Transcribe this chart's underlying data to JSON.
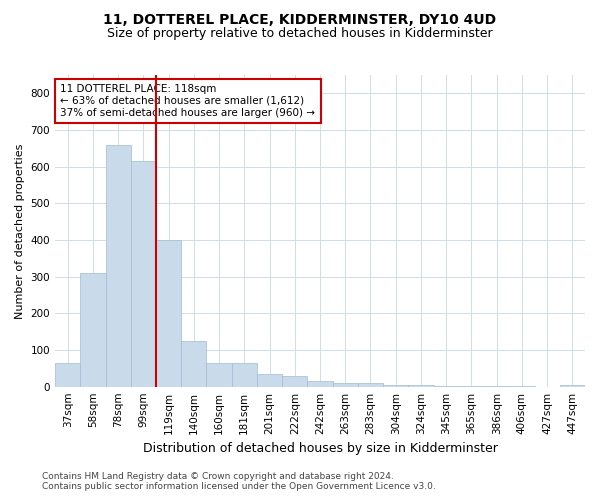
{
  "title": "11, DOTTEREL PLACE, KIDDERMINSTER, DY10 4UD",
  "subtitle": "Size of property relative to detached houses in Kidderminster",
  "xlabel": "Distribution of detached houses by size in Kidderminster",
  "ylabel": "Number of detached properties",
  "categories": [
    "37sqm",
    "58sqm",
    "78sqm",
    "99sqm",
    "119sqm",
    "140sqm",
    "160sqm",
    "181sqm",
    "201sqm",
    "222sqm",
    "242sqm",
    "263sqm",
    "283sqm",
    "304sqm",
    "324sqm",
    "345sqm",
    "365sqm",
    "386sqm",
    "406sqm",
    "427sqm",
    "447sqm"
  ],
  "values": [
    65,
    310,
    660,
    615,
    400,
    125,
    65,
    65,
    35,
    30,
    15,
    10,
    10,
    5,
    5,
    3,
    3,
    2,
    2,
    0,
    5
  ],
  "bar_color": "#c9daea",
  "bar_edge_color": "#a0bcd4",
  "vline_index": 3.5,
  "vline_color": "#cc0000",
  "annotation_text": "11 DOTTEREL PLACE: 118sqm\n← 63% of detached houses are smaller (1,612)\n37% of semi-detached houses are larger (960) →",
  "annotation_box_color": "#ffffff",
  "annotation_box_edge_color": "#cc0000",
  "footnote1": "Contains HM Land Registry data © Crown copyright and database right 2024.",
  "footnote2": "Contains public sector information licensed under the Open Government Licence v3.0.",
  "title_fontsize": 10,
  "subtitle_fontsize": 9,
  "xlabel_fontsize": 9,
  "ylabel_fontsize": 8,
  "tick_fontsize": 7.5,
  "annotation_fontsize": 7.5,
  "footnote_fontsize": 6.5,
  "ylim": [
    0,
    850
  ],
  "yticks": [
    0,
    100,
    200,
    300,
    400,
    500,
    600,
    700,
    800
  ],
  "background_color": "#ffffff",
  "grid_color": "#d0dce8"
}
